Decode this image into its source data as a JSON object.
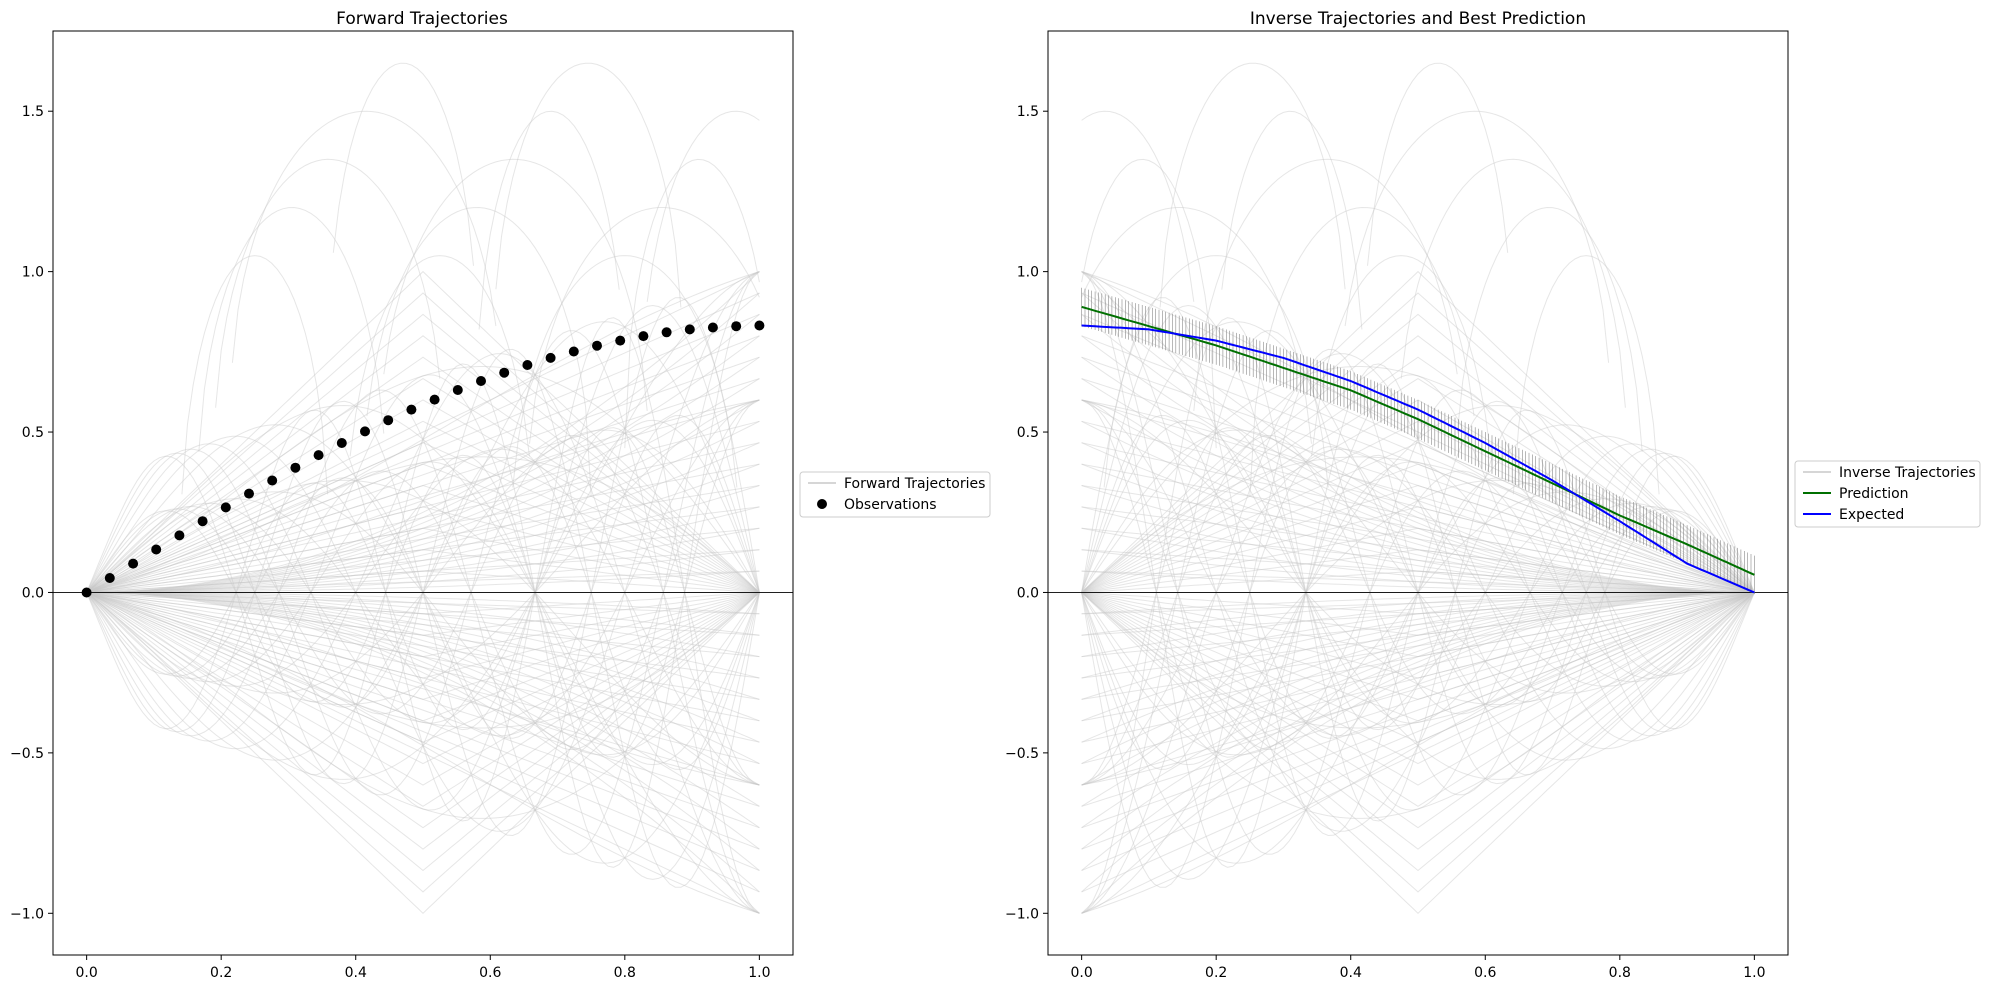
{
  "chart_data": [
    {
      "type": "line",
      "title": "Forward Trajectories",
      "xlim": [
        -0.05,
        1.05
      ],
      "ylim": [
        -1.13,
        1.75
      ],
      "xticks": [
        0.0,
        0.2,
        0.4,
        0.6,
        0.8,
        1.0
      ],
      "xtick_labels": [
        "0.0",
        "0.2",
        "0.4",
        "0.6",
        "0.8",
        "1.0"
      ],
      "yticks": [
        -1.0,
        -0.5,
        0.0,
        0.5,
        1.0,
        1.5
      ],
      "ytick_labels": [
        "−1.0",
        "−0.5",
        "0.0",
        "0.5",
        "1.0",
        "1.5"
      ],
      "grid": false,
      "zero_line": true,
      "legend": {
        "placement": "outside-right",
        "entries": [
          "Forward Trajectories",
          "Observations"
        ]
      },
      "series": [
        {
          "name": "Forward Trajectories",
          "kind": "family",
          "color": "#c8c8c8",
          "description_families": [
            "linear",
            "quadratic",
            "sine",
            "bump",
            "fan"
          ]
        },
        {
          "name": "Observations",
          "kind": "scatter",
          "color": "#000000",
          "x": [
            0.0,
            0.0345,
            0.069,
            0.1034,
            0.1379,
            0.1724,
            0.2069,
            0.2414,
            0.2759,
            0.3103,
            0.3448,
            0.3793,
            0.4138,
            0.4483,
            0.4828,
            0.5172,
            0.5517,
            0.5862,
            0.6207,
            0.6552,
            0.6897,
            0.7241,
            0.7586,
            0.7931,
            0.8276,
            0.8621,
            0.8966,
            0.931,
            0.9655,
            1.0
          ],
          "y": [
            0.0,
            0.045,
            0.09,
            0.134,
            0.178,
            0.222,
            0.265,
            0.308,
            0.349,
            0.389,
            0.428,
            0.466,
            0.502,
            0.537,
            0.57,
            0.601,
            0.631,
            0.659,
            0.685,
            0.709,
            0.731,
            0.751,
            0.769,
            0.785,
            0.799,
            0.811,
            0.82,
            0.826,
            0.83,
            0.832
          ]
        }
      ]
    },
    {
      "type": "line",
      "title": "Inverse Trajectories and Best Prediction",
      "xlim": [
        -0.05,
        1.05
      ],
      "ylim": [
        -1.13,
        1.75
      ],
      "xticks": [
        0.0,
        0.2,
        0.4,
        0.6,
        0.8,
        1.0
      ],
      "xtick_labels": [
        "0.0",
        "0.2",
        "0.4",
        "0.6",
        "0.8",
        "1.0"
      ],
      "yticks": [
        -1.0,
        -0.5,
        0.0,
        0.5,
        1.0,
        1.5
      ],
      "ytick_labels": [
        "−1.0",
        "−0.5",
        "0.0",
        "0.5",
        "1.0",
        "1.5"
      ],
      "grid": false,
      "zero_line": true,
      "legend": {
        "placement": "outside-right",
        "entries": [
          "Inverse Trajectories",
          "Prediction",
          "Expected"
        ]
      },
      "series": [
        {
          "name": "Inverse Trajectories",
          "kind": "family",
          "color": "#c8c8c8"
        },
        {
          "name": "Prediction",
          "kind": "line",
          "color": "#007000",
          "x": [
            0.0,
            0.1,
            0.2,
            0.3,
            0.4,
            0.5,
            0.6,
            0.7,
            0.8,
            0.9,
            1.0
          ],
          "y": [
            0.89,
            0.83,
            0.77,
            0.7,
            0.63,
            0.54,
            0.44,
            0.34,
            0.24,
            0.15,
            0.055
          ]
        },
        {
          "name": "Expected",
          "kind": "line",
          "color": "#0000ff",
          "x": [
            0.0,
            0.1,
            0.2,
            0.3,
            0.4,
            0.5,
            0.6,
            0.7,
            0.8,
            0.9,
            1.0
          ],
          "y": [
            0.832,
            0.82,
            0.785,
            0.731,
            0.659,
            0.57,
            0.466,
            0.349,
            0.222,
            0.09,
            0.0
          ]
        }
      ]
    }
  ]
}
